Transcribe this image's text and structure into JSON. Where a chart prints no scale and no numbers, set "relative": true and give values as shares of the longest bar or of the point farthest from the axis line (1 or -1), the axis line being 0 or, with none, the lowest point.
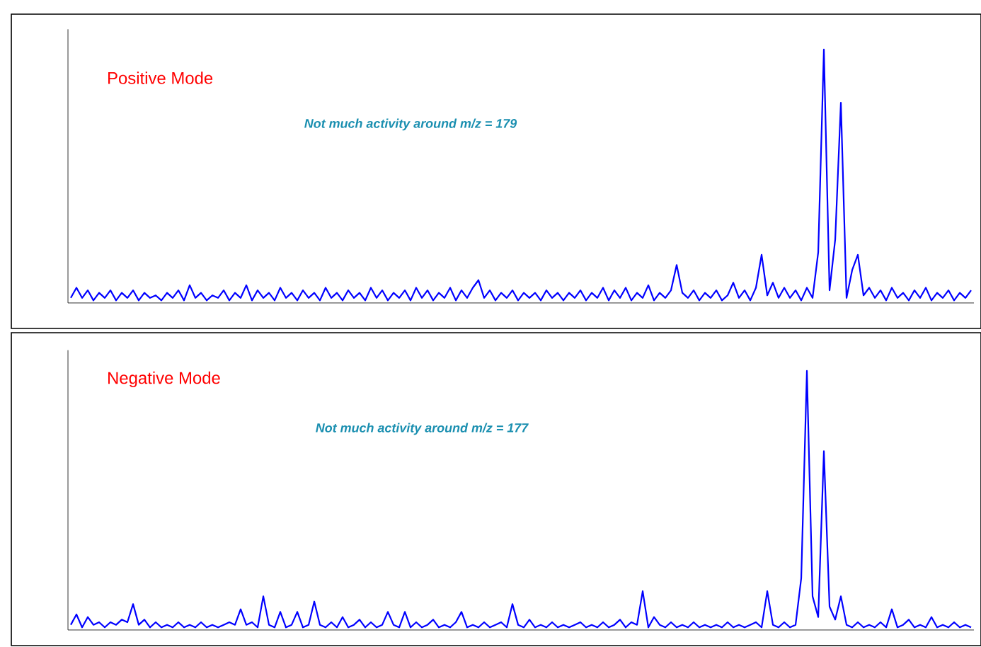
{
  "chart_data": [
    {
      "type": "line",
      "title": "Positive Mode",
      "annotations": [
        "Not much activity around m/z = 179"
      ],
      "relative": true,
      "categories": [
        null,
        null,
        null,
        null,
        null,
        null,
        null,
        null,
        null,
        null,
        null,
        null,
        null,
        null,
        null,
        null,
        null,
        null,
        null,
        null,
        null,
        null,
        null,
        null,
        null,
        null,
        null,
        null,
        null,
        null,
        null,
        null,
        null,
        null,
        null,
        null,
        null,
        null,
        null,
        null,
        null,
        null,
        null,
        null,
        null,
        null,
        null,
        null,
        null,
        null,
        null,
        null,
        null,
        null,
        null,
        null,
        null,
        null,
        null,
        null,
        null,
        null,
        null,
        null,
        null,
        null,
        null,
        null,
        null,
        null,
        null,
        null,
        null,
        null,
        null,
        null,
        null,
        null,
        null,
        null,
        null,
        null,
        null,
        null,
        null,
        null,
        null,
        null,
        null,
        null,
        null,
        null,
        null,
        null,
        null,
        null,
        null,
        null,
        null,
        null,
        null,
        null,
        null,
        null,
        null,
        null,
        null,
        null,
        null,
        null,
        null,
        null,
        null,
        null,
        null,
        null,
        null,
        null,
        null,
        null,
        null,
        null,
        null,
        null,
        null,
        null,
        null,
        null,
        null,
        null,
        null,
        null,
        null,
        null,
        null,
        null,
        null,
        null,
        null,
        null,
        null,
        null,
        null,
        null,
        null,
        null,
        null,
        null,
        null,
        null,
        null,
        null,
        null,
        null,
        null,
        null,
        null,
        null,
        null,
        null
      ],
      "series": [
        {
          "color": "#0000ff",
          "values": [
            0.02,
            0.06,
            0.02,
            0.05,
            0.01,
            0.04,
            0.02,
            0.05,
            0.01,
            0.04,
            0.02,
            0.05,
            0.01,
            0.04,
            0.02,
            0.03,
            0.01,
            0.04,
            0.02,
            0.05,
            0.01,
            0.07,
            0.02,
            0.04,
            0.01,
            0.03,
            0.02,
            0.05,
            0.01,
            0.04,
            0.02,
            0.07,
            0.01,
            0.05,
            0.02,
            0.04,
            0.01,
            0.06,
            0.02,
            0.04,
            0.01,
            0.05,
            0.02,
            0.04,
            0.01,
            0.06,
            0.02,
            0.04,
            0.01,
            0.05,
            0.02,
            0.04,
            0.01,
            0.06,
            0.02,
            0.05,
            0.01,
            0.04,
            0.02,
            0.05,
            0.01,
            0.06,
            0.02,
            0.05,
            0.01,
            0.04,
            0.02,
            0.06,
            0.01,
            0.05,
            0.02,
            0.06,
            0.09,
            0.02,
            0.05,
            0.01,
            0.04,
            0.02,
            0.05,
            0.01,
            0.04,
            0.02,
            0.04,
            0.01,
            0.05,
            0.02,
            0.04,
            0.01,
            0.04,
            0.02,
            0.05,
            0.01,
            0.04,
            0.02,
            0.06,
            0.01,
            0.05,
            0.02,
            0.06,
            0.01,
            0.04,
            0.02,
            0.07,
            0.01,
            0.04,
            0.02,
            0.05,
            0.15,
            0.04,
            0.02,
            0.05,
            0.01,
            0.04,
            0.02,
            0.05,
            0.01,
            0.03,
            0.08,
            0.02,
            0.05,
            0.01,
            0.06,
            0.19,
            0.03,
            0.08,
            0.02,
            0.06,
            0.02,
            0.05,
            0.01,
            0.06,
            0.02,
            0.2,
            1.0,
            0.05,
            0.25,
            0.79,
            0.02,
            0.13,
            0.19,
            0.03,
            0.06,
            0.02,
            0.05,
            0.01,
            0.06,
            0.02,
            0.04,
            0.01,
            0.05,
            0.02,
            0.06,
            0.01,
            0.04,
            0.02,
            0.05,
            0.01,
            0.04,
            0.02,
            0.05
          ]
        }
      ]
    },
    {
      "type": "line",
      "title": "Negative Mode",
      "annotations": [
        "Not much activity around m/z = 177"
      ],
      "relative": true,
      "categories": [
        null,
        null,
        null,
        null,
        null,
        null,
        null,
        null,
        null,
        null,
        null,
        null,
        null,
        null,
        null,
        null,
        null,
        null,
        null,
        null,
        null,
        null,
        null,
        null,
        null,
        null,
        null,
        null,
        null,
        null,
        null,
        null,
        null,
        null,
        null,
        null,
        null,
        null,
        null,
        null,
        null,
        null,
        null,
        null,
        null,
        null,
        null,
        null,
        null,
        null,
        null,
        null,
        null,
        null,
        null,
        null,
        null,
        null,
        null,
        null,
        null,
        null,
        null,
        null,
        null,
        null,
        null,
        null,
        null,
        null,
        null,
        null,
        null,
        null,
        null,
        null,
        null,
        null,
        null,
        null,
        null,
        null,
        null,
        null,
        null,
        null,
        null,
        null,
        null,
        null,
        null,
        null,
        null,
        null,
        null,
        null,
        null,
        null,
        null,
        null,
        null,
        null,
        null,
        null,
        null,
        null,
        null,
        null,
        null,
        null,
        null,
        null,
        null,
        null,
        null,
        null,
        null,
        null,
        null,
        null,
        null,
        null,
        null,
        null,
        null,
        null,
        null,
        null,
        null,
        null,
        null,
        null,
        null,
        null,
        null,
        null,
        null,
        null,
        null,
        null,
        null,
        null,
        null,
        null,
        null,
        null,
        null,
        null,
        null,
        null,
        null,
        null,
        null,
        null,
        null,
        null,
        null,
        null,
        null,
        null
      ],
      "series": [
        {
          "color": "#0000ff",
          "values": [
            0.02,
            0.06,
            0.01,
            0.05,
            0.02,
            0.03,
            0.01,
            0.03,
            0.02,
            0.04,
            0.03,
            0.1,
            0.02,
            0.04,
            0.01,
            0.03,
            0.01,
            0.02,
            0.01,
            0.03,
            0.01,
            0.02,
            0.01,
            0.03,
            0.01,
            0.02,
            0.01,
            0.02,
            0.03,
            0.02,
            0.08,
            0.02,
            0.03,
            0.01,
            0.13,
            0.02,
            0.01,
            0.07,
            0.01,
            0.02,
            0.07,
            0.01,
            0.02,
            0.11,
            0.02,
            0.01,
            0.03,
            0.01,
            0.05,
            0.01,
            0.02,
            0.04,
            0.01,
            0.03,
            0.01,
            0.02,
            0.07,
            0.02,
            0.01,
            0.07,
            0.01,
            0.03,
            0.01,
            0.02,
            0.04,
            0.01,
            0.02,
            0.01,
            0.03,
            0.07,
            0.01,
            0.02,
            0.01,
            0.03,
            0.01,
            0.02,
            0.03,
            0.01,
            0.1,
            0.02,
            0.01,
            0.04,
            0.01,
            0.02,
            0.01,
            0.03,
            0.01,
            0.02,
            0.01,
            0.02,
            0.03,
            0.01,
            0.02,
            0.01,
            0.03,
            0.01,
            0.02,
            0.04,
            0.01,
            0.03,
            0.02,
            0.15,
            0.01,
            0.05,
            0.02,
            0.01,
            0.03,
            0.01,
            0.02,
            0.01,
            0.03,
            0.01,
            0.02,
            0.01,
            0.02,
            0.01,
            0.03,
            0.01,
            0.02,
            0.01,
            0.02,
            0.03,
            0.01,
            0.15,
            0.02,
            0.01,
            0.03,
            0.01,
            0.02,
            0.2,
            1.0,
            0.13,
            0.05,
            0.69,
            0.09,
            0.04,
            0.13,
            0.02,
            0.01,
            0.03,
            0.01,
            0.02,
            0.01,
            0.03,
            0.01,
            0.08,
            0.01,
            0.02,
            0.04,
            0.01,
            0.02,
            0.01,
            0.05,
            0.01,
            0.02,
            0.01,
            0.03,
            0.01,
            0.02,
            0.01
          ]
        }
      ]
    }
  ]
}
